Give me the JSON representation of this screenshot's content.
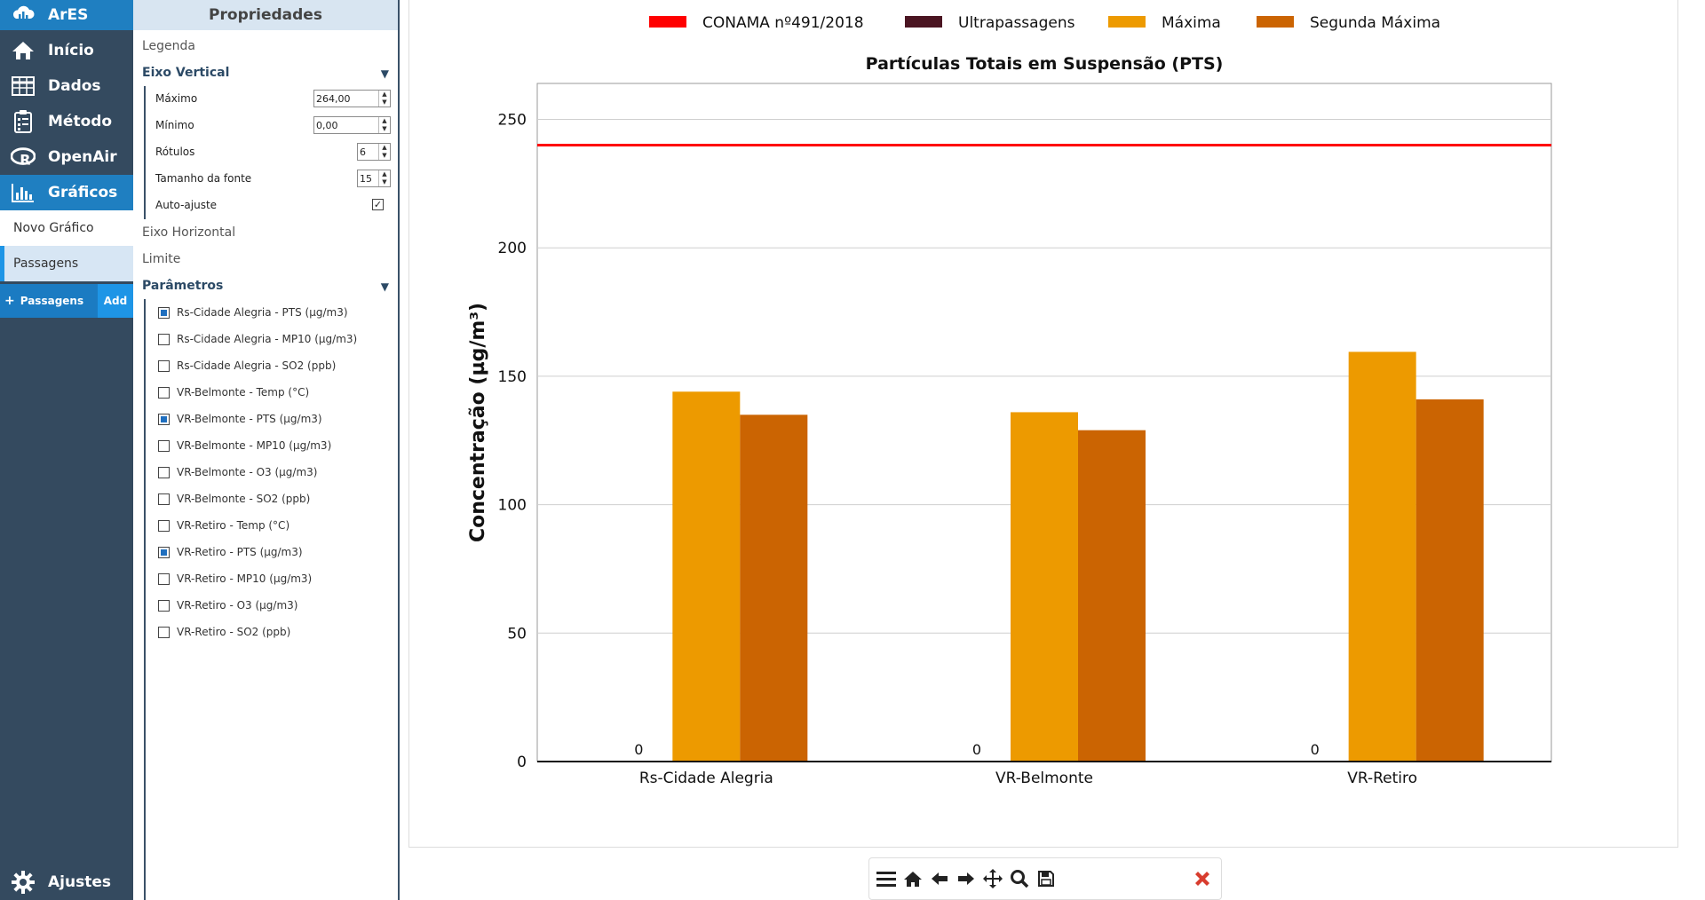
{
  "nav": {
    "brand": "ArES",
    "items": [
      {
        "label": "Início",
        "icon": "home-icon"
      },
      {
        "label": "Dados",
        "icon": "table-icon"
      },
      {
        "label": "Método",
        "icon": "clipboard-icon"
      },
      {
        "label": "OpenAir",
        "icon": "r-logo-icon"
      },
      {
        "label": "Gráficos",
        "icon": "bar-chart-icon"
      }
    ],
    "sub_items": [
      "Novo Gráfico",
      "Passagens"
    ],
    "add_row": {
      "label": "Passagens",
      "button": "Add"
    },
    "settings": "Ajustes"
  },
  "props": {
    "title": "Propriedades",
    "legenda": "Legenda",
    "eixo_vertical": "Eixo Vertical",
    "fields": [
      {
        "label": "Máximo",
        "value": "264,00"
      },
      {
        "label": "Mínimo",
        "value": "0,00"
      },
      {
        "label": "Rótulos",
        "value": "6"
      },
      {
        "label": "Tamanho da fonte",
        "value": "15"
      },
      {
        "label": "Auto-ajuste"
      }
    ],
    "eixo_horizontal": "Eixo Horizontal",
    "limite": "Limite",
    "parametros": "Parâmetros",
    "params": [
      {
        "label": "Rs-Cidade Alegria - PTS (µg/m3)",
        "checked": true
      },
      {
        "label": "Rs-Cidade Alegria - MP10 (µg/m3)",
        "checked": false
      },
      {
        "label": "Rs-Cidade Alegria - SO2 (ppb)",
        "checked": false
      },
      {
        "label": "VR-Belmonte - Temp (°C)",
        "checked": false
      },
      {
        "label": "VR-Belmonte - PTS (µg/m3)",
        "checked": true
      },
      {
        "label": "VR-Belmonte - MP10 (µg/m3)",
        "checked": false
      },
      {
        "label": "VR-Belmonte - O3 (µg/m3)",
        "checked": false
      },
      {
        "label": "VR-Belmonte - SO2 (ppb)",
        "checked": false
      },
      {
        "label": "VR-Retiro - Temp (°C)",
        "checked": false
      },
      {
        "label": "VR-Retiro - PTS (µg/m3)",
        "checked": true
      },
      {
        "label": "VR-Retiro - MP10 (µg/m3)",
        "checked": false
      },
      {
        "label": "VR-Retiro - O3 (µg/m3)",
        "checked": false
      },
      {
        "label": "VR-Retiro - SO2 (ppb)",
        "checked": false
      }
    ]
  },
  "colors": {
    "conama": "#ff0000",
    "ultrapassagens": "#4b1522",
    "maxima": "#ed9a00",
    "segunda": "#cb6402"
  },
  "chart_data": {
    "type": "bar",
    "title": "Partículas Totais em Suspensão (PTS)",
    "ylabel": "Concentração (µg/m³)",
    "xlabel": "",
    "ylim": [
      0,
      264
    ],
    "yticks": [
      0,
      50,
      100,
      150,
      200,
      250
    ],
    "categories": [
      "Rs-Cidade Alegria",
      "VR-Belmonte",
      "VR-Retiro"
    ],
    "series": [
      {
        "name": "Ultrapassagens",
        "values": [
          0,
          0,
          0
        ],
        "labels": [
          "0",
          "0",
          "0"
        ]
      },
      {
        "name": "Máxima",
        "values": [
          144,
          136,
          159.5
        ]
      },
      {
        "name": "Segunda Máxima",
        "values": [
          135,
          129,
          141
        ]
      }
    ],
    "limit_line": {
      "name": "CONAMA nº491/2018",
      "value": 240
    },
    "legend": [
      "CONAMA nº491/2018",
      "Ultrapassagens",
      "Máxima",
      "Segunda Máxima"
    ],
    "legend_position": "top",
    "grid": true
  }
}
